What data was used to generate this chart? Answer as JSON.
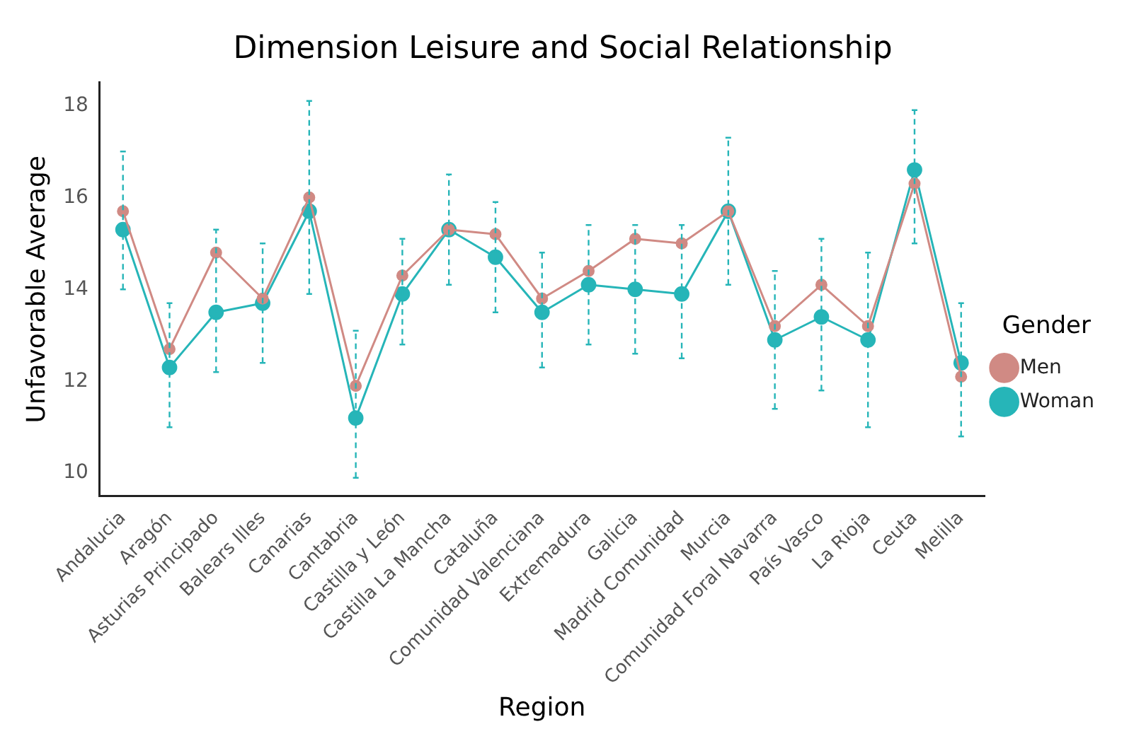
{
  "chart_data": {
    "type": "line",
    "title": "Dimension Leisure and Social Relationship",
    "xlabel": "Region",
    "ylabel": "Unfavorable Average",
    "legend_title": "Gender",
    "categories": [
      "Andalucia",
      "Aragón",
      "Asturias Principado",
      "Balears Illes",
      "Canarias",
      "Cantabria",
      "Castilla y León",
      "Castilla La Mancha",
      "Cataluña",
      "Comunidad Valenciana",
      "Extremadura",
      "Galicia",
      "Madrid Comunidad",
      "Murcia",
      "Comunidad Foral Navarra",
      "País Vasco",
      "La Rioja",
      "Ceuta",
      "Melilla"
    ],
    "series": [
      {
        "name": "Men",
        "color": "#d08a84",
        "values": [
          15.7,
          12.7,
          14.8,
          13.8,
          16.0,
          11.9,
          14.3,
          15.3,
          15.2,
          13.8,
          14.4,
          15.1,
          15.0,
          15.7,
          13.2,
          14.1,
          13.2,
          16.3,
          12.1
        ]
      },
      {
        "name": "Woman",
        "color": "#26b5b8",
        "values": [
          15.3,
          12.3,
          13.5,
          13.7,
          15.7,
          11.2,
          13.9,
          15.3,
          14.7,
          13.5,
          14.1,
          14.0,
          13.9,
          15.7,
          12.9,
          13.4,
          12.9,
          16.6,
          12.4
        ],
        "errors": [
          [
            14.0,
            17.0
          ],
          [
            11.0,
            13.7
          ],
          [
            12.2,
            15.3
          ],
          [
            12.4,
            15.0
          ],
          [
            13.9,
            18.1
          ],
          [
            9.9,
            13.1
          ],
          [
            12.8,
            15.1
          ],
          [
            14.1,
            16.5
          ],
          [
            13.5,
            15.9
          ],
          [
            12.3,
            14.8
          ],
          [
            12.8,
            15.4
          ],
          [
            12.6,
            15.4
          ],
          [
            12.5,
            15.4
          ],
          [
            14.1,
            17.3
          ],
          [
            11.4,
            14.4
          ],
          [
            11.8,
            15.1
          ],
          [
            11.0,
            14.8
          ],
          [
            15.0,
            17.9
          ],
          [
            10.8,
            13.7
          ]
        ]
      }
    ],
    "ylim": [
      9.5,
      18.5
    ],
    "yticks": [
      10,
      12,
      14,
      16,
      18
    ],
    "grid": false,
    "legend": "right",
    "marker": "circle",
    "line_style": "solid"
  }
}
